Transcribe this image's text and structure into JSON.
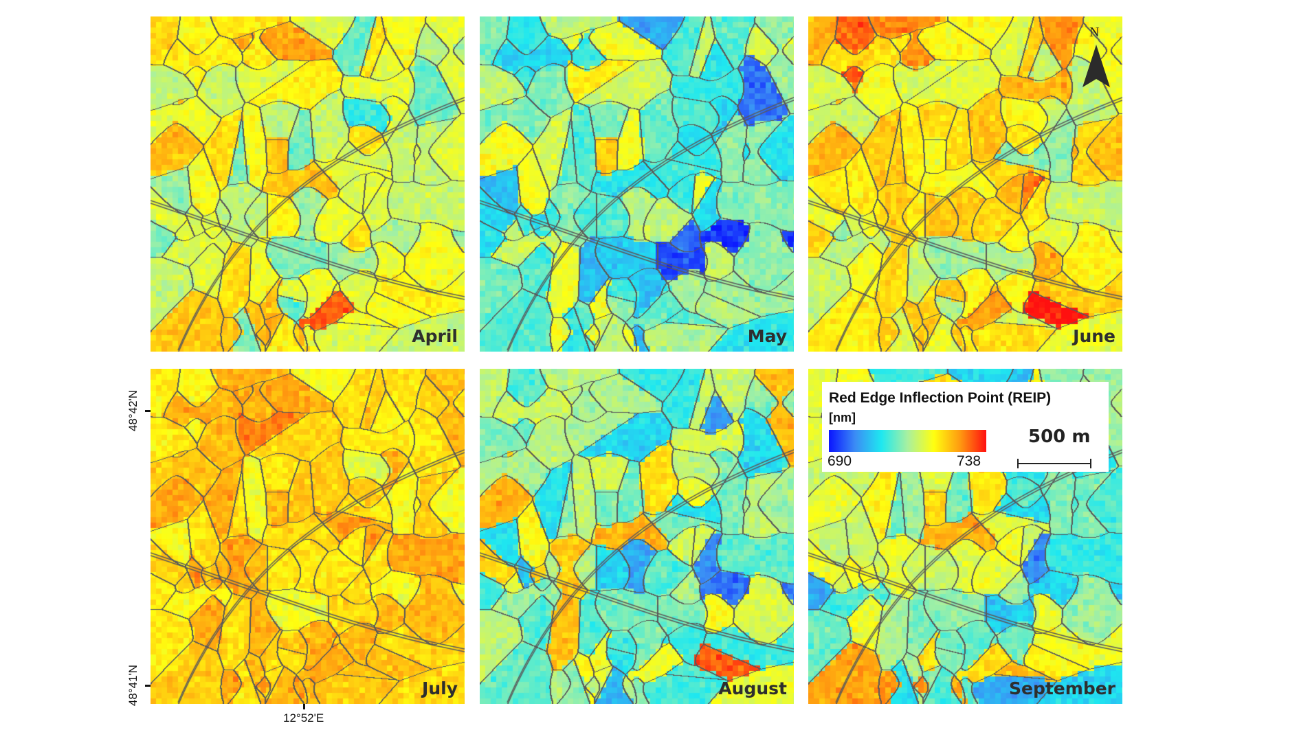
{
  "panels": [
    {
      "month": "April",
      "mean": 0.6,
      "spread": 0.22
    },
    {
      "month": "May",
      "mean": 0.45,
      "spread": 0.32
    },
    {
      "month": "June",
      "mean": 0.68,
      "spread": 0.25
    },
    {
      "month": "July",
      "mean": 0.74,
      "spread": 0.13
    },
    {
      "month": "August",
      "mean": 0.5,
      "spread": 0.32
    },
    {
      "month": "September",
      "mean": 0.52,
      "spread": 0.32
    }
  ],
  "legend": {
    "title": "Red Edge Inflection Point (REIP)",
    "unit": "[nm]",
    "min": "690",
    "max": "738",
    "colormap": [
      "#0a14ff",
      "#3b8cf5",
      "#1ee8f0",
      "#a8f0a0",
      "#ffff10",
      "#ff9a10",
      "#ff1010"
    ]
  },
  "scale_bar": {
    "label": "500 m"
  },
  "north_arrow": {
    "label": "N"
  },
  "axes": {
    "lat_ticks": [
      "48°42'N",
      "48°41'N"
    ],
    "lon_ticks": [
      "12°52'E"
    ]
  },
  "colors": {
    "field_boundary": "#5a5a5a",
    "label": "#2e2e2e"
  }
}
